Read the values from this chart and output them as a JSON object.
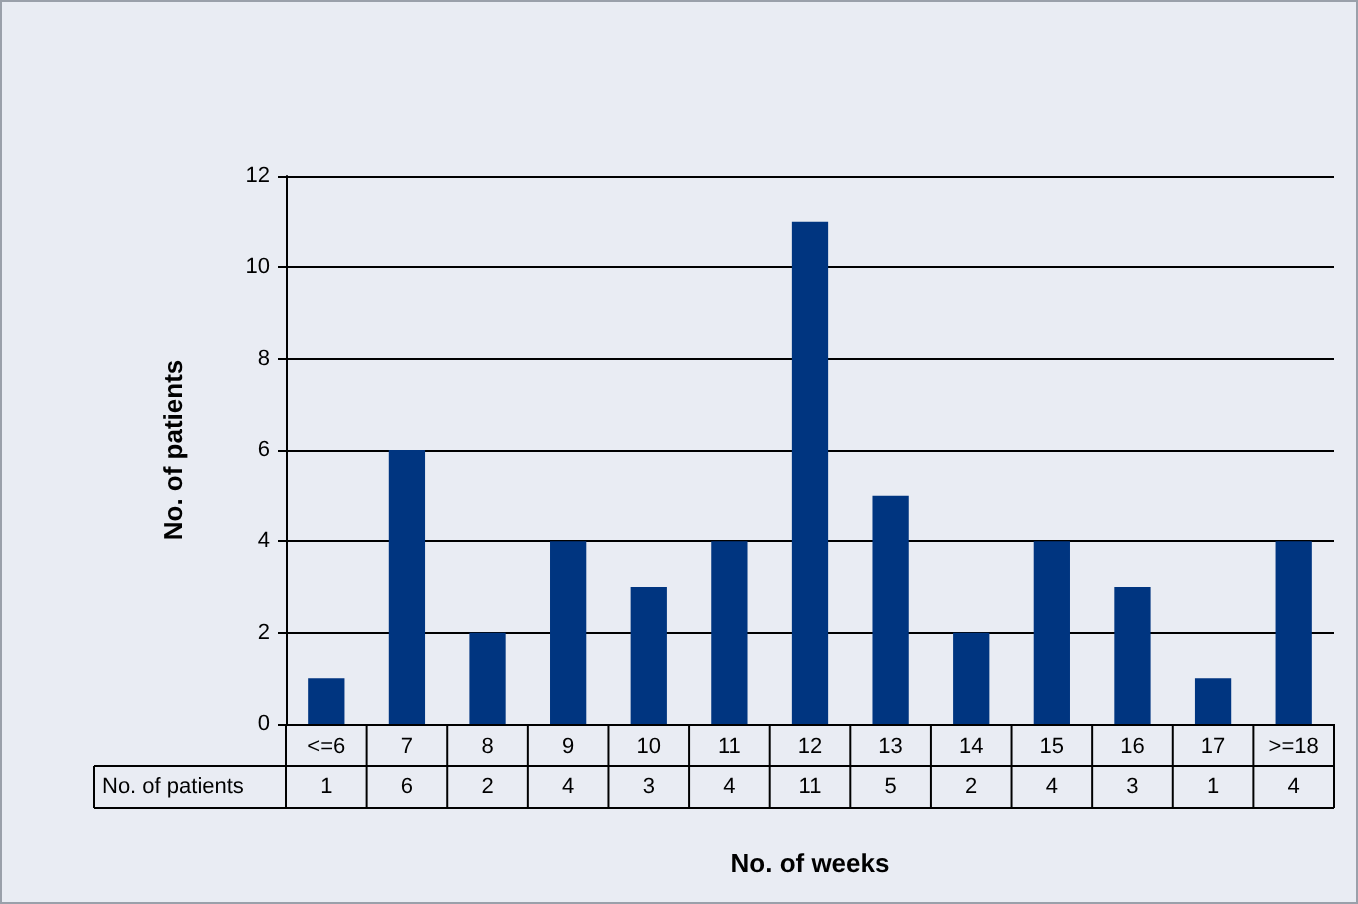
{
  "chart_data": {
    "type": "bar",
    "xlabel": "No. of weeks",
    "ylabel": "No. of patients",
    "categories": [
      "<=6",
      "7",
      "8",
      "9",
      "10",
      "11",
      "12",
      "13",
      "14",
      "15",
      "16",
      "17",
      ">=18"
    ],
    "series": [
      {
        "name": "No. of patients",
        "color": "#003580",
        "values": [
          1,
          6,
          2,
          4,
          3,
          4,
          11,
          5,
          2,
          4,
          3,
          1,
          4
        ]
      }
    ],
    "ylim": [
      0,
      12
    ],
    "yticks": [
      0,
      2,
      4,
      6,
      8,
      10,
      12
    ],
    "grid": "y",
    "legend": false,
    "data_labels": true
  }
}
